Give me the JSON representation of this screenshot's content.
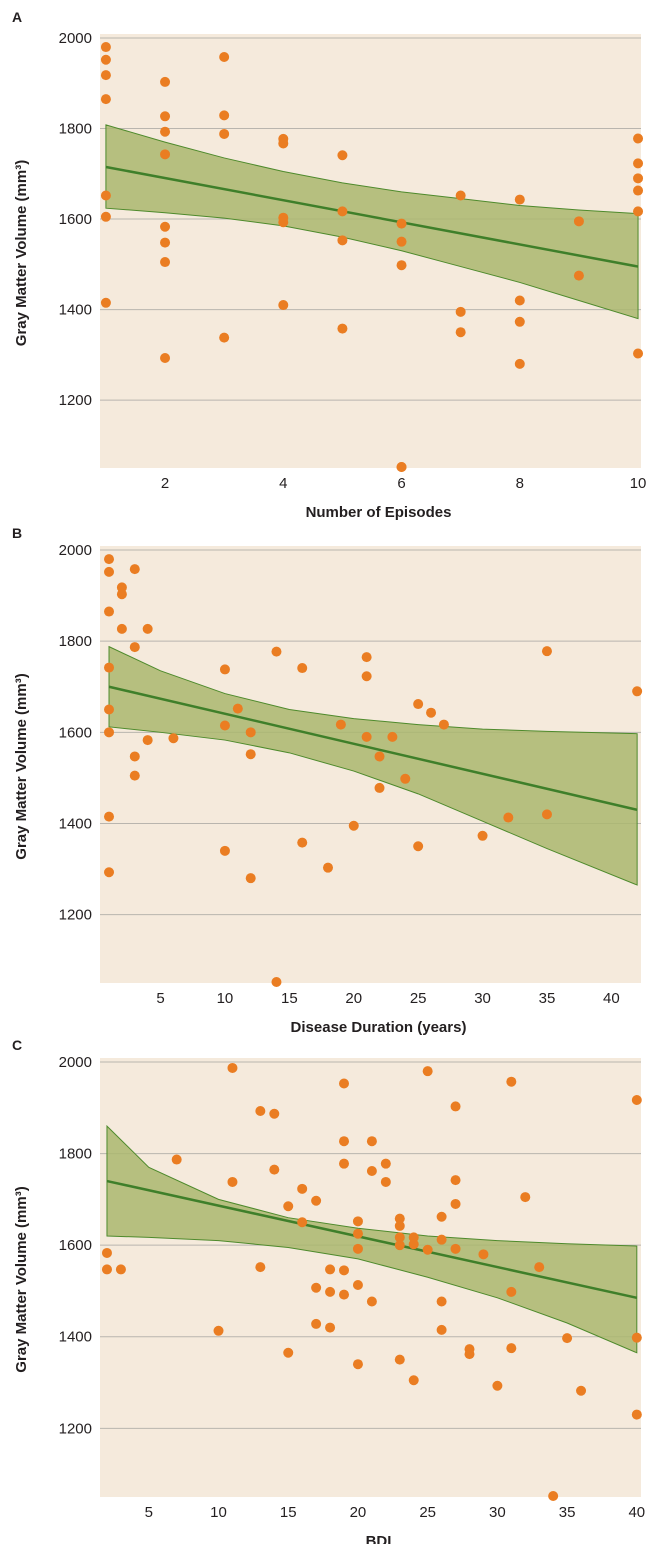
{
  "colors": {
    "plot_background": "#f5eadc",
    "points": "#ea7d22",
    "confidence_band": "#aab76f",
    "fit_line": "#3f7f2a",
    "gridlines": "#b9b5ae"
  },
  "chart_data": [
    {
      "panel": "A",
      "type": "scatter",
      "title": "",
      "xlabel": "Number of Episodes",
      "ylabel": "Gray Matter Volume (mm³)",
      "xlim": [
        0.9,
        10.05
      ],
      "ylim": [
        1050,
        2000
      ],
      "xticks": [
        2,
        4,
        6,
        8,
        10
      ],
      "yticks": [
        1200,
        1400,
        1600,
        1800,
        2000
      ],
      "grid": "horizontal",
      "regression": {
        "x": [
          1,
          10
        ],
        "y": [
          1715,
          1495
        ]
      },
      "band": {
        "x": [
          1,
          2,
          3,
          4,
          5,
          6,
          7,
          8,
          9,
          10
        ],
        "upper": [
          1808,
          1770,
          1735,
          1705,
          1680,
          1660,
          1645,
          1630,
          1620,
          1612
        ],
        "lower": [
          1624,
          1614,
          1602,
          1585,
          1560,
          1530,
          1495,
          1460,
          1420,
          1380
        ]
      },
      "x": [
        1,
        1,
        1,
        1,
        1,
        1,
        1,
        2,
        2,
        2,
        2,
        2,
        2,
        2,
        2,
        3,
        3,
        3,
        3,
        4,
        4,
        4,
        4,
        4,
        5,
        5,
        5,
        5,
        6,
        6,
        6,
        6,
        6,
        7,
        7,
        7,
        8,
        8,
        8,
        8,
        9,
        9,
        10,
        10,
        10,
        10,
        10,
        10
      ],
      "y": [
        1980,
        1952,
        1918,
        1865,
        1652,
        1605,
        1415,
        1903,
        1827,
        1793,
        1743,
        1583,
        1548,
        1505,
        1293,
        1958,
        1829,
        1788,
        1338,
        1777,
        1767,
        1603,
        1593,
        1410,
        1741,
        1617,
        1553,
        1358,
        1590,
        1550,
        1498,
        1052,
        1052,
        1652,
        1395,
        1350,
        1643,
        1420,
        1373,
        1280,
        1595,
        1475,
        1778,
        1723,
        1690,
        1663,
        1617,
        1303
      ]
    },
    {
      "panel": "B",
      "type": "scatter",
      "title": "",
      "xlabel": "Disease Duration (years)",
      "ylabel": "Gray Matter Volume (mm³)",
      "xlim": [
        0.3,
        42.3
      ],
      "ylim": [
        1050,
        2000
      ],
      "xticks": [
        5,
        10,
        15,
        20,
        25,
        30,
        35,
        40
      ],
      "yticks": [
        1200,
        1400,
        1600,
        1800,
        2000
      ],
      "grid": "horizontal",
      "regression": {
        "x": [
          1,
          42
        ],
        "y": [
          1700,
          1430
        ]
      },
      "band": {
        "x": [
          1,
          5,
          10,
          15,
          20,
          25,
          30,
          35,
          42
        ],
        "upper": [
          1788,
          1735,
          1685,
          1650,
          1630,
          1617,
          1607,
          1602,
          1597
        ],
        "lower": [
          1612,
          1600,
          1583,
          1555,
          1515,
          1465,
          1405,
          1345,
          1265
        ]
      },
      "x": [
        1,
        1,
        1,
        1,
        1,
        1,
        1,
        1,
        2,
        2,
        2,
        3,
        3,
        3,
        3,
        4,
        4,
        6,
        10,
        10,
        10,
        11,
        12,
        12,
        12,
        14,
        14,
        16,
        16,
        18,
        19,
        20,
        21,
        21,
        21,
        22,
        22,
        23,
        24,
        25,
        25,
        26,
        27,
        30,
        32,
        35,
        35,
        42
      ],
      "y": [
        1980,
        1952,
        1865,
        1742,
        1650,
        1600,
        1415,
        1293,
        1918,
        1903,
        1827,
        1958,
        1787,
        1547,
        1505,
        1827,
        1583,
        1587,
        1738,
        1615,
        1340,
        1652,
        1600,
        1552,
        1280,
        1777,
        1050,
        1741,
        1358,
        1303,
        1617,
        1395,
        1765,
        1723,
        1590,
        1547,
        1478,
        1590,
        1498,
        1662,
        1350,
        1643,
        1617,
        1373,
        1413,
        1778,
        1420,
        1690
      ]
    },
    {
      "panel": "C",
      "type": "scatter",
      "title": "",
      "xlabel": "BDI",
      "ylabel": "Gray Matter Volume (mm³)",
      "xlim": [
        1.5,
        40.3
      ],
      "ylim": [
        1050,
        2000
      ],
      "xticks": [
        5,
        10,
        15,
        20,
        25,
        30,
        35,
        40
      ],
      "yticks": [
        1200,
        1400,
        1600,
        1800,
        2000
      ],
      "grid": "horizontal",
      "regression": {
        "x": [
          2,
          40
        ],
        "y": [
          1740,
          1485
        ]
      },
      "band": {
        "x": [
          2,
          5,
          10,
          15,
          20,
          25,
          30,
          35,
          40
        ],
        "upper": [
          1860,
          1770,
          1700,
          1660,
          1637,
          1620,
          1610,
          1603,
          1598
        ],
        "lower": [
          1620,
          1617,
          1610,
          1595,
          1570,
          1530,
          1485,
          1430,
          1365
        ]
      },
      "x": [
        2,
        2,
        3,
        7,
        10,
        11,
        11,
        13,
        13,
        14,
        14,
        15,
        15,
        16,
        16,
        17,
        17,
        17,
        18,
        18,
        18,
        19,
        19,
        19,
        19,
        19,
        20,
        20,
        20,
        20,
        20,
        21,
        21,
        21,
        22,
        22,
        23,
        23,
        23,
        23,
        23,
        24,
        24,
        24,
        25,
        25,
        26,
        26,
        26,
        26,
        27,
        27,
        27,
        27,
        28,
        28,
        29,
        30,
        31,
        31,
        31,
        32,
        33,
        34,
        35,
        36,
        40,
        40,
        40
      ],
      "y": [
        1583,
        1547,
        1547,
        1787,
        1413,
        1987,
        1738,
        1893,
        1552,
        1887,
        1765,
        1685,
        1365,
        1723,
        1650,
        1697,
        1507,
        1428,
        1547,
        1498,
        1420,
        1953,
        1827,
        1778,
        1545,
        1492,
        1652,
        1625,
        1592,
        1513,
        1340,
        1827,
        1762,
        1477,
        1778,
        1738,
        1658,
        1642,
        1617,
        1600,
        1350,
        1617,
        1602,
        1305,
        1980,
        1590,
        1662,
        1612,
        1477,
        1415,
        1903,
        1742,
        1690,
        1592,
        1373,
        1362,
        1580,
        1293,
        1957,
        1498,
        1375,
        1705,
        1552,
        1050,
        1397,
        1282,
        1917,
        1398,
        1230
      ]
    }
  ]
}
